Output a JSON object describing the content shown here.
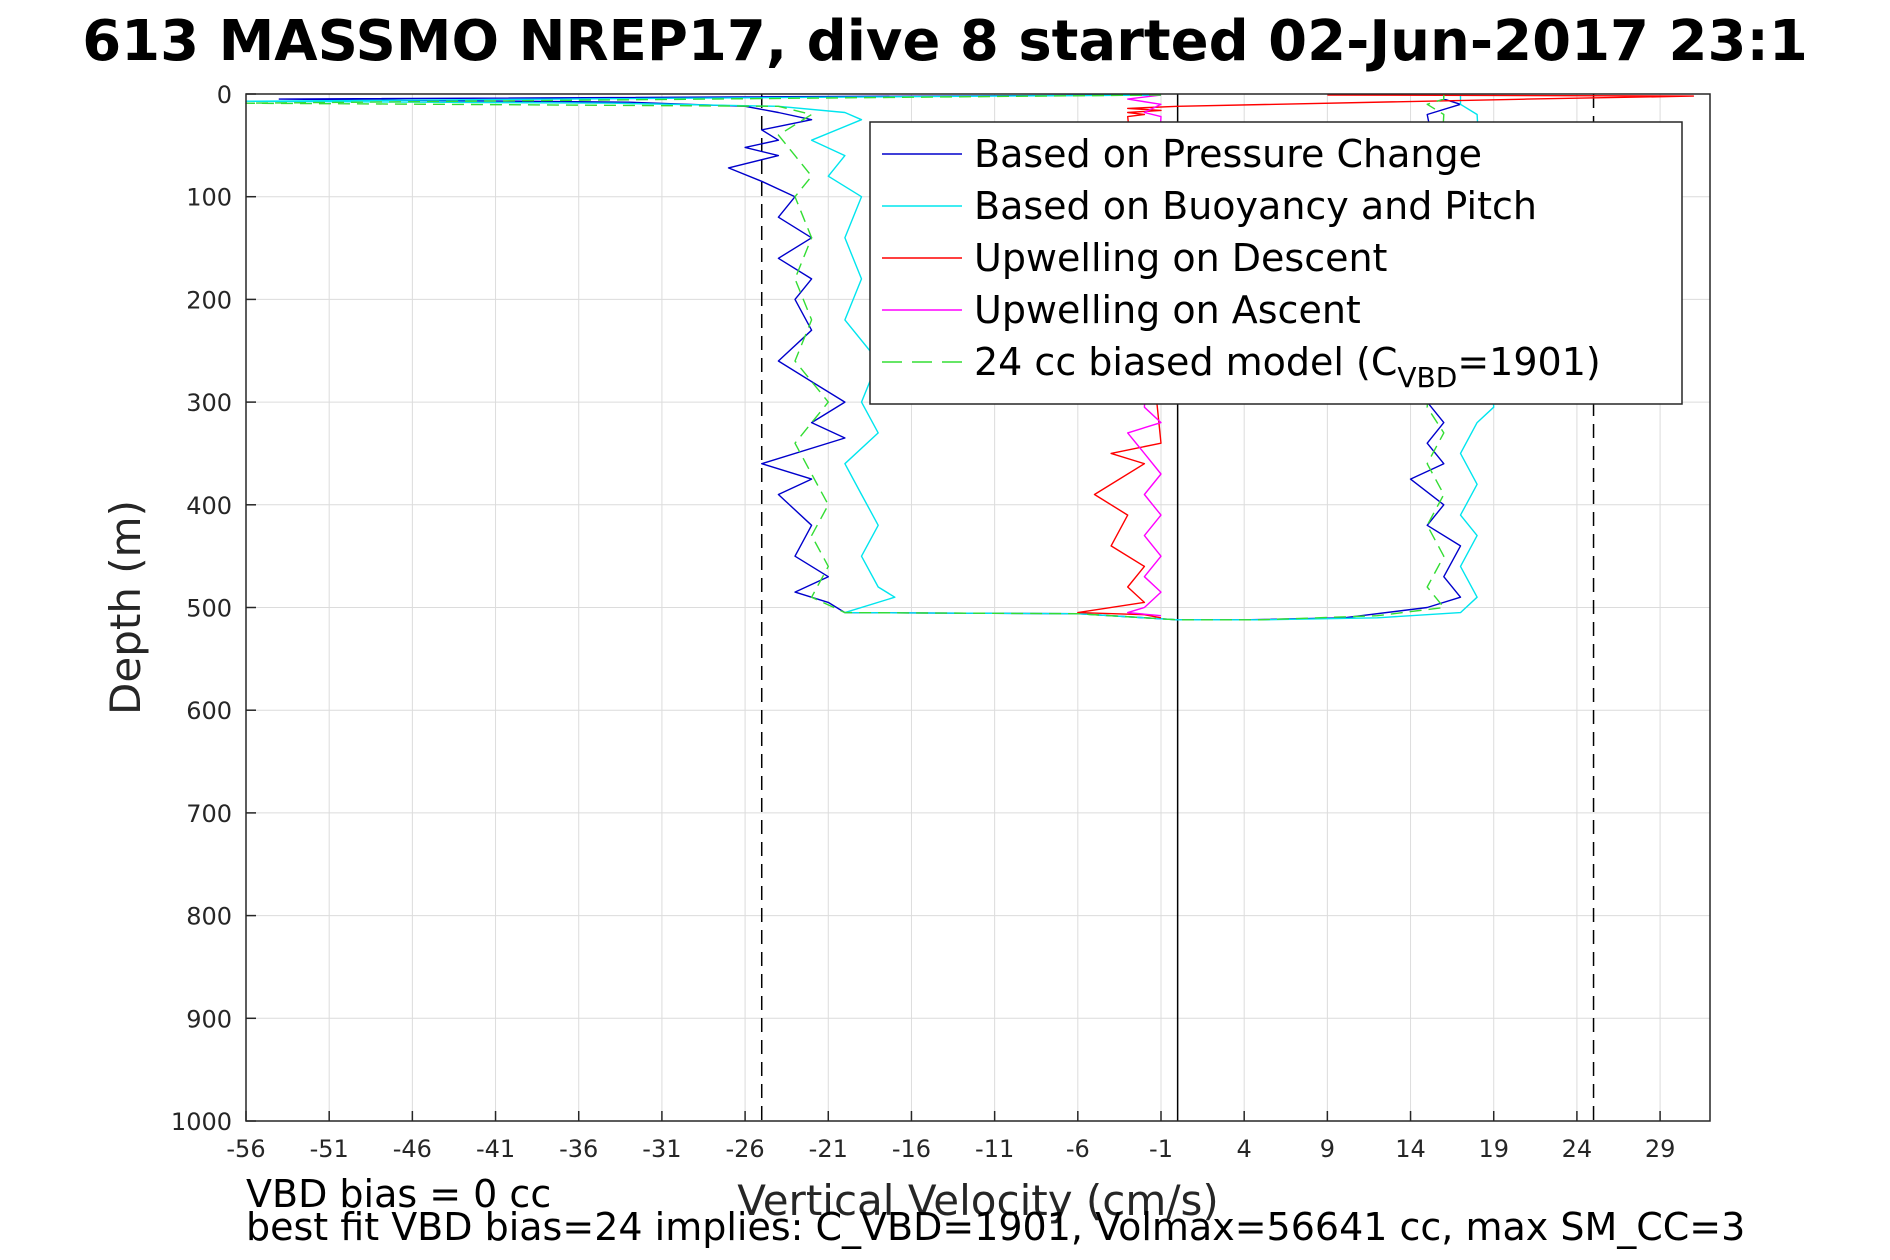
{
  "chart_data": {
    "type": "line",
    "title": "613 MASSMO NREP17, dive 8 started 02-Jun-2017 23:1",
    "xlabel": "Vertical Velocity (cm/s)",
    "ylabel": "Depth (m)",
    "xlim": [
      -56,
      32
    ],
    "ylim": [
      0,
      1000
    ],
    "y_reversed": true,
    "grid": true,
    "xticks": [
      -56,
      -51,
      -46,
      -41,
      -36,
      -31,
      -26,
      -21,
      -16,
      -11,
      -6,
      -1,
      4,
      9,
      14,
      19,
      24,
      29
    ],
    "yticks": [
      0,
      100,
      200,
      300,
      400,
      500,
      600,
      700,
      800,
      900,
      1000
    ],
    "legend_position": "top-right",
    "reference_lines": [
      {
        "x": -25,
        "style": "dashed",
        "color": "#000000"
      },
      {
        "x": 0,
        "style": "solid",
        "color": "#000000"
      },
      {
        "x": 25,
        "style": "dashed",
        "color": "#000000"
      }
    ],
    "series": [
      {
        "name": "Based on Pressure Change",
        "legend_label": "Based on Pressure Change",
        "color": "#0000cc",
        "style": "solid",
        "points": [
          [
            -1,
            1
          ],
          [
            -54,
            5
          ],
          [
            -33,
            8
          ],
          [
            -26,
            12
          ],
          [
            -24,
            18
          ],
          [
            -22,
            25
          ],
          [
            -25,
            35
          ],
          [
            -24,
            45
          ],
          [
            -26,
            52
          ],
          [
            -24,
            60
          ],
          [
            -27,
            72
          ],
          [
            -25,
            85
          ],
          [
            -23,
            100
          ],
          [
            -24,
            120
          ],
          [
            -22,
            140
          ],
          [
            -24,
            160
          ],
          [
            -22,
            180
          ],
          [
            -23,
            200
          ],
          [
            -22,
            230
          ],
          [
            -24,
            260
          ],
          [
            -22,
            280
          ],
          [
            -20,
            300
          ],
          [
            -22,
            320
          ],
          [
            -20,
            335
          ],
          [
            -25,
            360
          ],
          [
            -22,
            375
          ],
          [
            -24,
            390
          ],
          [
            -22,
            420
          ],
          [
            -23,
            450
          ],
          [
            -21,
            470
          ],
          [
            -23,
            485
          ],
          [
            -21,
            495
          ],
          [
            -20,
            505
          ],
          [
            -6,
            506
          ],
          [
            0,
            512
          ],
          [
            4,
            512
          ],
          [
            10,
            510
          ],
          [
            15,
            500
          ],
          [
            17,
            490
          ],
          [
            16,
            470
          ],
          [
            17,
            440
          ],
          [
            15,
            420
          ],
          [
            16,
            400
          ],
          [
            14,
            375
          ],
          [
            16,
            360
          ],
          [
            15,
            340
          ],
          [
            16,
            320
          ],
          [
            15,
            300
          ],
          [
            16,
            100
          ],
          [
            15,
            20
          ],
          [
            17,
            10
          ],
          [
            16,
            5
          ],
          [
            16,
            1
          ]
        ]
      },
      {
        "name": "Based on Buoyancy and Pitch",
        "legend_label": "Based on Buoyancy and Pitch",
        "color": "#00e5ee",
        "style": "solid",
        "points": [
          [
            -1,
            1
          ],
          [
            -56,
            7
          ],
          [
            -34,
            9
          ],
          [
            -24,
            12
          ],
          [
            -20,
            18
          ],
          [
            -19,
            25
          ],
          [
            -22,
            45
          ],
          [
            -20,
            60
          ],
          [
            -21,
            80
          ],
          [
            -19,
            100
          ],
          [
            -20,
            140
          ],
          [
            -19,
            180
          ],
          [
            -20,
            220
          ],
          [
            -18,
            260
          ],
          [
            -19,
            300
          ],
          [
            -18,
            330
          ],
          [
            -20,
            360
          ],
          [
            -19,
            390
          ],
          [
            -18,
            420
          ],
          [
            -19,
            450
          ],
          [
            -18,
            480
          ],
          [
            -17,
            490
          ],
          [
            -20,
            505
          ],
          [
            -6,
            506
          ],
          [
            0,
            512
          ],
          [
            5,
            512
          ],
          [
            12,
            510
          ],
          [
            17,
            505
          ],
          [
            18,
            490
          ],
          [
            17,
            460
          ],
          [
            18,
            430
          ],
          [
            17,
            410
          ],
          [
            18,
            380
          ],
          [
            17,
            350
          ],
          [
            18,
            320
          ],
          [
            19,
            305
          ],
          [
            18,
            20
          ],
          [
            17,
            10
          ],
          [
            17,
            5
          ],
          [
            17,
            1
          ]
        ]
      },
      {
        "name": "Upwelling on Descent",
        "legend_label": "Upwelling on Descent",
        "color": "#ff0000",
        "style": "solid",
        "points": [
          [
            9,
            1
          ],
          [
            31,
            2
          ],
          [
            21,
            5
          ],
          [
            0,
            12
          ],
          [
            -3,
            14
          ],
          [
            -1,
            16
          ],
          [
            -3,
            18
          ],
          [
            -2,
            20
          ],
          [
            -3,
            22
          ],
          [
            -1,
            340
          ],
          [
            -4,
            350
          ],
          [
            -2,
            360
          ],
          [
            -5,
            390
          ],
          [
            -3,
            410
          ],
          [
            -4,
            440
          ],
          [
            -2,
            460
          ],
          [
            -3,
            480
          ],
          [
            -2,
            495
          ],
          [
            -6,
            505
          ],
          [
            -2,
            507
          ],
          [
            -1,
            510
          ]
        ]
      },
      {
        "name": "Upwelling on Ascent",
        "legend_label": "Upwelling on Ascent",
        "color": "#ff00ff",
        "style": "solid",
        "points": [
          [
            -1,
            1
          ],
          [
            -3,
            5
          ],
          [
            -1,
            10
          ],
          [
            -2,
            18
          ],
          [
            -1,
            22
          ],
          [
            -2,
            305
          ],
          [
            -1,
            320
          ],
          [
            -3,
            330
          ],
          [
            -2,
            350
          ],
          [
            -1,
            370
          ],
          [
            -2,
            390
          ],
          [
            -1,
            410
          ],
          [
            -2,
            430
          ],
          [
            -1,
            450
          ],
          [
            -2,
            470
          ],
          [
            -1,
            485
          ],
          [
            -2,
            500
          ],
          [
            -3,
            505
          ],
          [
            -1,
            508
          ]
        ]
      },
      {
        "name": "24 cc biased model",
        "legend_label": "24 cc biased model (C",
        "legend_sub": "VBD",
        "legend_suffix": "=1901)",
        "color": "#33dd33",
        "style": "dashed",
        "points": [
          [
            -1,
            1
          ],
          [
            -56,
            9
          ],
          [
            -24,
            12
          ],
          [
            -22,
            20
          ],
          [
            -24,
            40
          ],
          [
            -23,
            60
          ],
          [
            -22,
            80
          ],
          [
            -23,
            100
          ],
          [
            -22,
            140
          ],
          [
            -23,
            180
          ],
          [
            -22,
            220
          ],
          [
            -23,
            260
          ],
          [
            -21,
            300
          ],
          [
            -23,
            340
          ],
          [
            -22,
            370
          ],
          [
            -21,
            400
          ],
          [
            -22,
            430
          ],
          [
            -21,
            460
          ],
          [
            -22,
            490
          ],
          [
            -20,
            505
          ],
          [
            -6,
            506
          ],
          [
            0,
            512
          ],
          [
            5,
            512
          ],
          [
            12,
            508
          ],
          [
            16,
            500
          ],
          [
            15,
            480
          ],
          [
            16,
            450
          ],
          [
            15,
            420
          ],
          [
            16,
            390
          ],
          [
            15,
            360
          ],
          [
            16,
            330
          ],
          [
            15,
            305
          ],
          [
            16,
            20
          ],
          [
            15,
            10
          ],
          [
            16,
            5
          ],
          [
            16,
            1
          ]
        ]
      }
    ],
    "footer": {
      "line1": "VBD bias = 0 cc",
      "line2": "best fit VBD bias=24 implies: C_VBD=1901, Volmax=56641 cc, max SM_CC=3"
    }
  }
}
